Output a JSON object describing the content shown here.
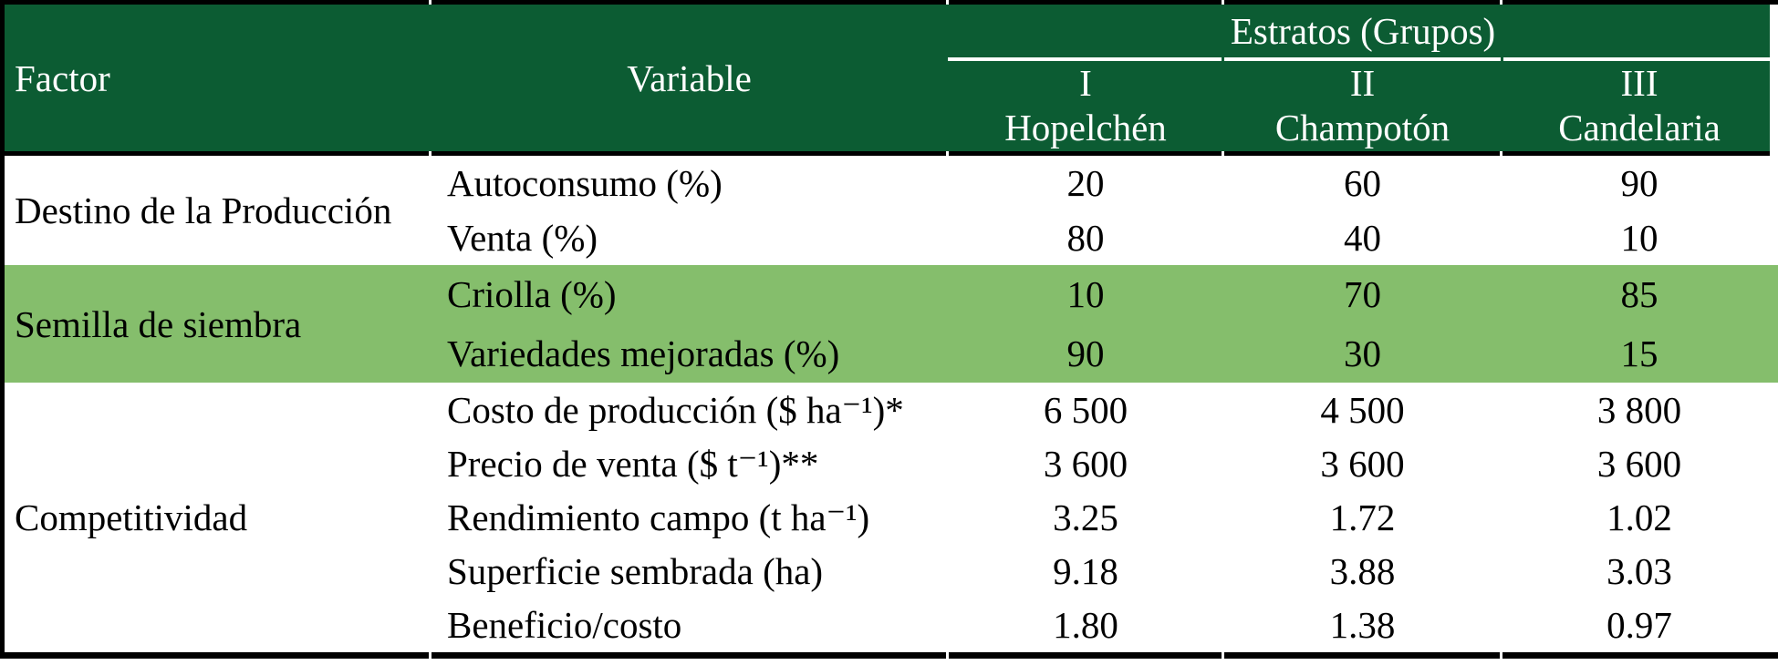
{
  "table": {
    "header": {
      "factor": "Factor",
      "variable": "Variable",
      "estratos_title": "Estratos (Grupos)",
      "groups": [
        {
          "numeral": "I",
          "name": "Hopelchén"
        },
        {
          "numeral": "II",
          "name": "Champotón"
        },
        {
          "numeral": "III",
          "name": "Candelaria"
        }
      ]
    },
    "sections": [
      {
        "factor": "Destino de la Producción",
        "rows": [
          {
            "variable": "Autoconsumo (%)",
            "values": [
              "20",
              "60",
              "90"
            ]
          },
          {
            "variable": "Venta (%)",
            "values": [
              "80",
              "40",
              "10"
            ]
          }
        ]
      },
      {
        "factor": "Semilla de siembra",
        "rows": [
          {
            "variable": "Criolla (%)",
            "values": [
              "10",
              "70",
              "85"
            ]
          },
          {
            "variable": "Variedades mejoradas (%)",
            "values": [
              "90",
              "30",
              "15"
            ]
          }
        ]
      },
      {
        "factor": "Competitividad",
        "rows": [
          {
            "variable": "Costo de producción ($ ha⁻¹)*",
            "values": [
              "6 500",
              "4 500",
              "3 800"
            ]
          },
          {
            "variable": "Precio de venta ($ t⁻¹)**",
            "values": [
              "3 600",
              "3 600",
              "3 600"
            ]
          },
          {
            "variable": "Rendimiento campo (t ha⁻¹)",
            "values": [
              "3.25",
              "1.72",
              "1.02"
            ]
          },
          {
            "variable": "Superficie sembrada (ha)",
            "values": [
              "9.18",
              "3.88",
              "3.03"
            ]
          },
          {
            "variable": "Beneficio/costo",
            "values": [
              "1.80",
              "1.38",
              "0.97"
            ]
          }
        ]
      }
    ],
    "colors": {
      "header_green": "#0C5C33",
      "band_green": "#85BE6C",
      "border_black": "#000000",
      "header_text": "#FFFFFF"
    }
  }
}
